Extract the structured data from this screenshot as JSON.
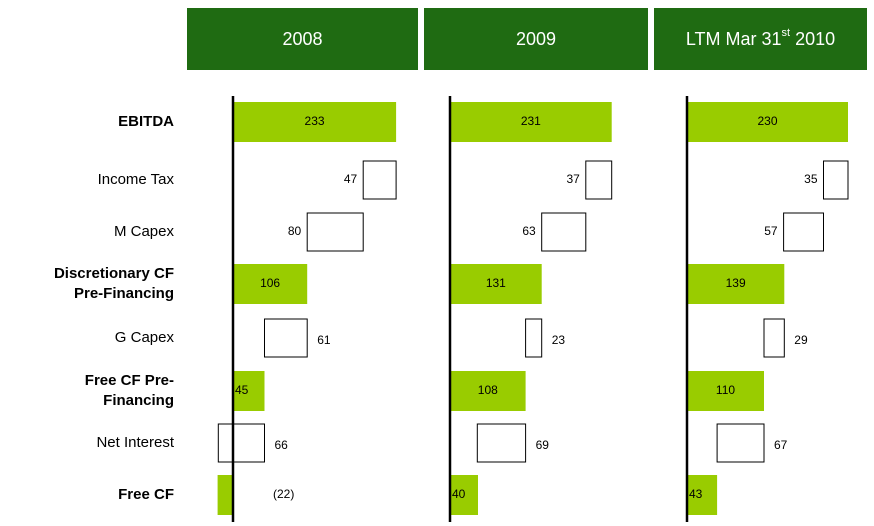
{
  "chart_data": {
    "type": "waterfall",
    "headers": [
      {
        "text": "2008"
      },
      {
        "text": "2009"
      },
      {
        "text": "LTM Mar 31",
        "sup": "st",
        "after": " 2010"
      }
    ],
    "categories": [
      [
        "EBITDA"
      ],
      [
        "Income Tax"
      ],
      [
        "M Capex"
      ],
      [
        "Discretionary CF",
        "Pre-Financing"
      ],
      [
        "G Capex"
      ],
      [
        "Free CF Pre-",
        "Financing"
      ],
      [
        "Net Interest"
      ],
      [
        "Free CF"
      ]
    ],
    "measure": [
      "total",
      "decrease",
      "decrease",
      "total",
      "decrease",
      "total",
      "decrease",
      "total"
    ],
    "xlim": [
      -30,
      250
    ],
    "total_color": "#99cc00",
    "header_color": "#1f6b12",
    "series": [
      {
        "values": [
          233,
          47,
          80,
          106,
          61,
          45,
          66,
          -22
        ],
        "value_labels": [
          null,
          null,
          null,
          null,
          null,
          null,
          null,
          "(22)"
        ]
      },
      {
        "values": [
          231,
          37,
          63,
          131,
          23,
          108,
          69,
          40
        ]
      },
      {
        "values": [
          230,
          35,
          57,
          139,
          29,
          110,
          67,
          43
        ]
      }
    ]
  }
}
